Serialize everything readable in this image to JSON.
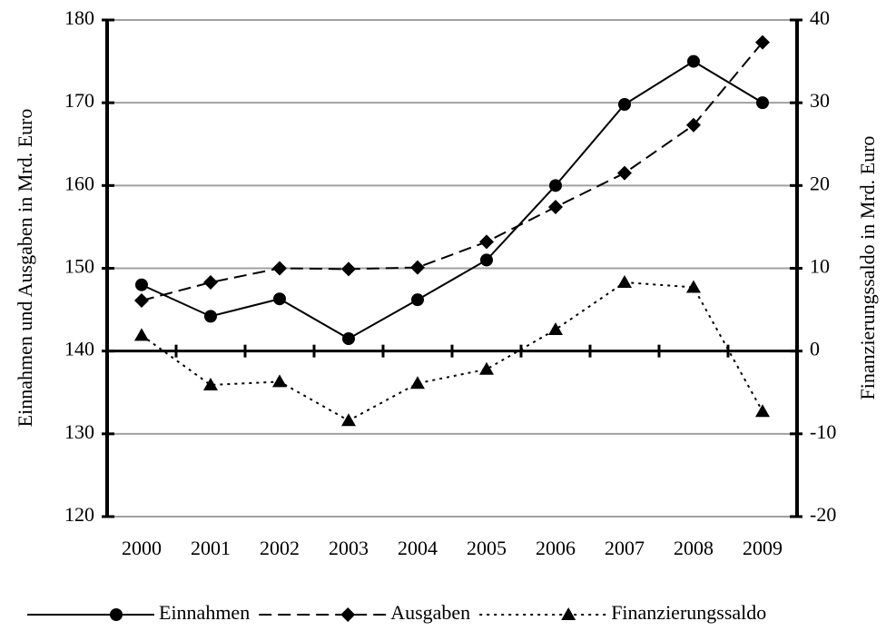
{
  "chart_data": {
    "type": "line",
    "categories": [
      "2000",
      "2001",
      "2002",
      "2003",
      "2004",
      "2005",
      "2006",
      "2007",
      "2008",
      "2009"
    ],
    "series": [
      {
        "name": "Einnahmen",
        "color": "#000000",
        "style": "solid",
        "marker": "circle",
        "values": [
          148,
          144.2,
          146.3,
          141.5,
          146.2,
          151,
          160,
          169.8,
          175,
          170
        ]
      },
      {
        "name": "Ausgaben",
        "color": "#000000",
        "style": "dashed",
        "marker": "diamond",
        "values": [
          146.1,
          148.3,
          150,
          149.9,
          150.1,
          153.2,
          157.4,
          161.5,
          167.3,
          177.3
        ]
      },
      {
        "name": "Finanzierungssaldo",
        "color": "#000000",
        "style": "dotted",
        "marker": "triangle",
        "axis": "y2",
        "values": [
          1.9,
          -4.1,
          -3.7,
          -8.4,
          -3.9,
          -2.2,
          2.6,
          8.3,
          7.7,
          -7.3
        ]
      }
    ],
    "ylabel": "Einnahmen und Ausgaben in Mrd. Euro",
    "y2label": "Finanzierungssaldo in Mrd. Euro",
    "ylim": [
      120,
      180
    ],
    "yticks": [
      120,
      130,
      140,
      150,
      160,
      170,
      180
    ],
    "y2lim": [
      -20,
      40
    ],
    "y2ticks": [
      -20,
      -10,
      0,
      10,
      20,
      30,
      40
    ],
    "grid": true,
    "legend": "bottom"
  }
}
